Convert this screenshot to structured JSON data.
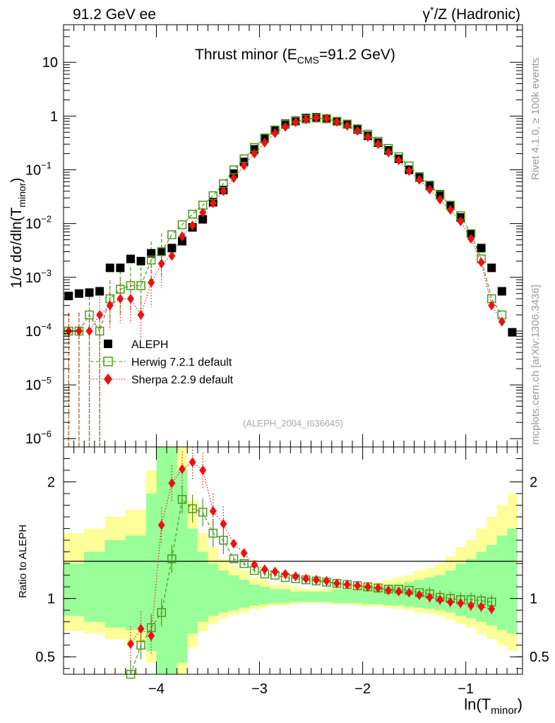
{
  "header": {
    "left": "91.2 GeV ee",
    "right_prefix": "γ",
    "right_sup": "*",
    "right_suffix": "/Z (Hadronic)"
  },
  "side": {
    "rivet": "Rivet 4.1.0, ≥ 100k events",
    "mcplots": "mcplots.cern.ch [arXiv:1306.3436]"
  },
  "colors": {
    "data": "#000000",
    "herwig": "#4a9a1a",
    "sherpa": "#ee1111",
    "band_green": "#99ff99",
    "band_yellow": "#ffff99"
  },
  "chart_data": [
    {
      "type": "scatter",
      "title_main": "Thrust minor (E",
      "title_sub": "CMS",
      "title_end": "=91.2 GeV)",
      "ylabel_main": "1/σ  dσ/dln(T",
      "ylabel_sub": "minor",
      "ylabel_end": ")",
      "yscale": "log",
      "xlim": [
        -4.9,
        -0.45
      ],
      "ylim": [
        7e-07,
        50
      ],
      "y_ticks": [
        {
          "v": 1e-06,
          "base": "10",
          "exp": "−6"
        },
        {
          "v": 1e-05,
          "base": "10",
          "exp": "−5"
        },
        {
          "v": 0.0001,
          "base": "10",
          "exp": "−4"
        },
        {
          "v": 0.001,
          "base": "10",
          "exp": "−3"
        },
        {
          "v": 0.01,
          "base": "10",
          "exp": "−2"
        },
        {
          "v": 0.1,
          "base": "10",
          "exp": "−1"
        },
        {
          "v": 1,
          "base": "1",
          "exp": ""
        },
        {
          "v": 10,
          "base": "10",
          "exp": ""
        }
      ],
      "watermark": "(ALEPH_2004_I636645)",
      "legend": [
        "ALEPH",
        "Herwig 7.2.1 default",
        "Sherpa 2.2.9 default"
      ],
      "series": [
        {
          "name": "ALEPH",
          "x": [
            -4.85,
            -4.75,
            -4.65,
            -4.55,
            -4.45,
            -4.35,
            -4.25,
            -4.15,
            -4.05,
            -3.95,
            -3.85,
            -3.75,
            -3.65,
            -3.55,
            -3.45,
            -3.35,
            -3.25,
            -3.15,
            -3.05,
            -2.95,
            -2.85,
            -2.75,
            -2.65,
            -2.55,
            -2.45,
            -2.35,
            -2.25,
            -2.15,
            -2.05,
            -1.95,
            -1.85,
            -1.75,
            -1.65,
            -1.55,
            -1.45,
            -1.35,
            -1.25,
            -1.15,
            -1.05,
            -0.95,
            -0.85,
            -0.75,
            -0.65,
            -0.55
          ],
          "y": [
            0.00045,
            0.0005,
            0.00052,
            0.00055,
            0.0015,
            0.0015,
            0.0022,
            0.002,
            0.0028,
            0.003,
            0.0035,
            0.0047,
            0.0085,
            0.012,
            0.025,
            0.042,
            0.085,
            0.14,
            0.24,
            0.38,
            0.55,
            0.72,
            0.82,
            0.92,
            0.95,
            0.9,
            0.8,
            0.7,
            0.56,
            0.43,
            0.32,
            0.23,
            0.16,
            0.1,
            0.072,
            0.05,
            0.035,
            0.022,
            0.013,
            0.0065,
            0.0035,
            0.0015,
            0.00055,
            9.5e-05
          ]
        },
        {
          "name": "Herwig 7.2.1 default",
          "x": [
            -4.85,
            -4.75,
            -4.65,
            -4.55,
            -4.45,
            -4.35,
            -4.25,
            -4.15,
            -4.05,
            -3.95,
            -3.85,
            -3.75,
            -3.65,
            -3.55,
            -3.45,
            -3.35,
            -3.25,
            -3.15,
            -3.05,
            -2.95,
            -2.85,
            -2.75,
            -2.65,
            -2.55,
            -2.45,
            -2.35,
            -2.25,
            -2.15,
            -2.05,
            -1.95,
            -1.85,
            -1.75,
            -1.65,
            -1.55,
            -1.45,
            -1.35,
            -1.25,
            -1.15,
            -1.05,
            -0.95,
            -0.85,
            -0.75,
            -0.65
          ],
          "y": [
            0.0001,
            0.0001,
            0.0002,
            0.0001,
            0.0004,
            0.0006,
            0.0007,
            0.0007,
            0.0021,
            0.003,
            0.0062,
            0.0095,
            0.015,
            0.022,
            0.033,
            0.055,
            0.1,
            0.16,
            0.26,
            0.39,
            0.55,
            0.7,
            0.8,
            0.88,
            0.92,
            0.89,
            0.8,
            0.71,
            0.58,
            0.46,
            0.34,
            0.25,
            0.175,
            0.118,
            0.075,
            0.052,
            0.034,
            0.022,
            0.014,
            0.0065,
            0.0022,
            0.0004,
            0.0002
          ]
        },
        {
          "name": "Sherpa 2.2.9 default",
          "x": [
            -4.85,
            -4.75,
            -4.65,
            -4.55,
            -4.45,
            -4.35,
            -4.25,
            -4.15,
            -4.05,
            -3.95,
            -3.85,
            -3.75,
            -3.65,
            -3.55,
            -3.45,
            -3.35,
            -3.25,
            -3.15,
            -3.05,
            -2.95,
            -2.85,
            -2.75,
            -2.65,
            -2.55,
            -2.45,
            -2.35,
            -2.25,
            -2.15,
            -2.05,
            -1.95,
            -1.85,
            -1.75,
            -1.65,
            -1.55,
            -1.45,
            -1.35,
            -1.25,
            -1.15,
            -1.05,
            -0.95,
            -0.85,
            -0.75,
            -0.65
          ],
          "y": [
            0.0001,
            0.0001,
            0.0001,
            0.0002,
            0.0003,
            0.0004,
            0.0004,
            0.0002,
            0.0008,
            0.0018,
            0.0025,
            0.0058,
            0.0092,
            0.016,
            0.024,
            0.04,
            0.07,
            0.12,
            0.2,
            0.32,
            0.48,
            0.63,
            0.77,
            0.87,
            0.93,
            0.9,
            0.78,
            0.66,
            0.53,
            0.41,
            0.3,
            0.21,
            0.15,
            0.095,
            0.065,
            0.043,
            0.028,
            0.018,
            0.011,
            0.0052,
            0.0019,
            0.0003,
            0.00015
          ]
        }
      ]
    },
    {
      "type": "line",
      "ylabel": "Ratio to ALEPH",
      "xlabel_main": "ln(T",
      "xlabel_sub": "minor",
      "xlabel_end": ")",
      "xlim": [
        -4.9,
        -0.45
      ],
      "ylim": [
        0.35,
        2.3
      ],
      "x_ticks": [
        {
          "v": -4,
          "label": "−4"
        },
        {
          "v": -3,
          "label": "−3"
        },
        {
          "v": -2,
          "label": "−2"
        },
        {
          "v": -1,
          "label": "−1"
        }
      ],
      "y_ticks": [
        {
          "v": 0.5,
          "label": "0.5"
        },
        {
          "v": 1,
          "label": "1"
        },
        {
          "v": 2,
          "label": "2"
        }
      ],
      "band_x": [
        -4.9,
        -4.8,
        -4.7,
        -4.6,
        -4.5,
        -4.4,
        -4.3,
        -4.2,
        -4.1,
        -4.0,
        -3.9,
        -3.8,
        -3.7,
        -3.6,
        -3.5,
        -3.4,
        -3.3,
        -3.2,
        -3.1,
        -3.0,
        -2.9,
        -2.8,
        -2.7,
        -2.6,
        -2.5,
        -2.4,
        -2.3,
        -2.2,
        -2.1,
        -2.0,
        -1.9,
        -1.8,
        -1.7,
        -1.6,
        -1.5,
        -1.4,
        -1.3,
        -1.2,
        -1.1,
        -1.0,
        -0.9,
        -0.8,
        -0.7,
        -0.6,
        -0.5
      ],
      "band_green": [
        0.85,
        0.85,
        0.8,
        0.8,
        0.75,
        0.75,
        0.73,
        0.73,
        0.55,
        0.35,
        0.35,
        0.45,
        0.7,
        0.8,
        0.85,
        0.88,
        0.9,
        0.92,
        0.94,
        0.95,
        0.96,
        0.96,
        0.97,
        0.97,
        0.97,
        0.97,
        0.96,
        0.96,
        0.96,
        0.95,
        0.95,
        0.94,
        0.94,
        0.93,
        0.92,
        0.91,
        0.9,
        0.88,
        0.85,
        0.83,
        0.8,
        0.77,
        0.73,
        0.7
      ],
      "band_yellow": [
        0.72,
        0.72,
        0.7,
        0.7,
        0.65,
        0.65,
        0.62,
        0.62,
        0.45,
        0.35,
        0.35,
        0.35,
        0.58,
        0.72,
        0.78,
        0.83,
        0.86,
        0.88,
        0.91,
        0.92,
        0.94,
        0.94,
        0.95,
        0.96,
        0.96,
        0.96,
        0.95,
        0.95,
        0.94,
        0.93,
        0.93,
        0.92,
        0.91,
        0.9,
        0.88,
        0.87,
        0.85,
        0.82,
        0.78,
        0.75,
        0.7,
        0.65,
        0.6,
        0.55
      ],
      "series": [
        {
          "name": "Herwig 7.2.1 default",
          "x": [
            -4.25,
            -4.15,
            -4.05,
            -3.95,
            -3.85,
            -3.75,
            -3.65,
            -3.55,
            -3.45,
            -3.35,
            -3.25,
            -3.15,
            -3.05,
            -2.95,
            -2.85,
            -2.75,
            -2.65,
            -2.55,
            -2.45,
            -2.35,
            -2.25,
            -2.15,
            -2.05,
            -1.95,
            -1.85,
            -1.75,
            -1.65,
            -1.55,
            -1.45,
            -1.35,
            -1.25,
            -1.15,
            -1.05,
            -0.95,
            -0.85,
            -0.75
          ],
          "y": [
            0.35,
            0.6,
            0.75,
            0.88,
            1.34,
            1.85,
            1.77,
            1.74,
            1.56,
            1.5,
            1.34,
            1.3,
            1.24,
            1.21,
            1.2,
            1.18,
            1.17,
            1.16,
            1.15,
            1.14,
            1.13,
            1.12,
            1.11,
            1.1,
            1.09,
            1.08,
            1.08,
            1.07,
            1.05,
            1.04,
            1.01,
            1.0,
            0.99,
            0.99,
            0.98,
            0.97
          ]
        },
        {
          "name": "Sherpa 2.2.9 default",
          "x": [
            -4.25,
            -4.15,
            -4.05,
            -3.95,
            -3.85,
            -3.75,
            -3.65,
            -3.55,
            -3.45,
            -3.35,
            -3.25,
            -3.15,
            -3.05,
            -2.95,
            -2.85,
            -2.75,
            -2.65,
            -2.55,
            -2.45,
            -2.35,
            -2.25,
            -2.15,
            -2.05,
            -1.95,
            -1.85,
            -1.75,
            -1.65,
            -1.55,
            -1.45,
            -1.35,
            -1.25,
            -1.15,
            -1.05,
            -0.95,
            -0.85,
            -0.75
          ],
          "y": [
            0.61,
            0.74,
            0.68,
            1.63,
            1.99,
            2.11,
            2.17,
            2.1,
            1.75,
            1.64,
            1.47,
            1.39,
            1.29,
            1.25,
            1.23,
            1.21,
            1.19,
            1.17,
            1.16,
            1.15,
            1.13,
            1.12,
            1.11,
            1.1,
            1.09,
            1.07,
            1.06,
            1.05,
            1.03,
            1.01,
            0.99,
            0.97,
            0.96,
            0.94,
            0.93,
            0.91
          ]
        }
      ]
    }
  ]
}
